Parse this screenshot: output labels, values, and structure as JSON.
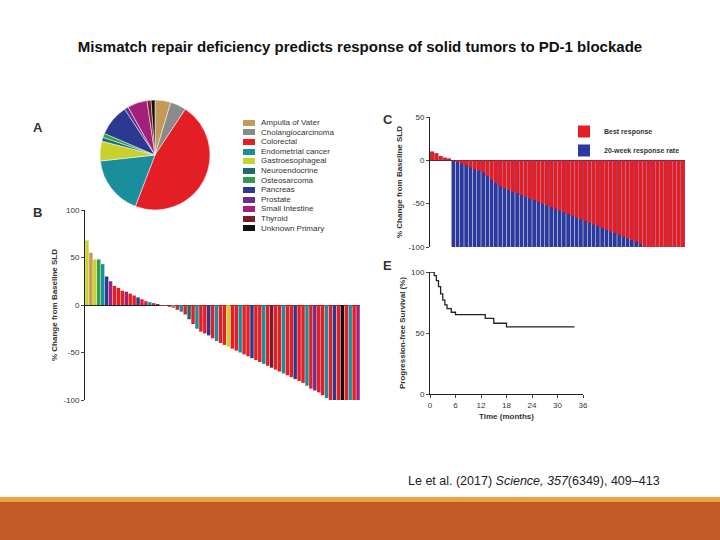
{
  "slide": {
    "title": "Mismatch repair deficiency predicts response of solid tumors to PD-1 blockade",
    "citation": {
      "authors": "Le et al. (2017) ",
      "journal": "Science, 357",
      "rest": "(6349), 409–413"
    }
  },
  "chart_data": [
    {
      "panel": "A",
      "type": "pie",
      "categories": [
        "Ampulla of Vater",
        "Cholangiocarcinoma",
        "Colorectal",
        "Endometrial cancer",
        "Gastroesophageal",
        "Neuroendocrine",
        "Osteosarcoma",
        "Pancreas",
        "Prostate",
        "Small Intestine",
        "Thyroid",
        "Unknown Primary"
      ],
      "values": [
        4,
        4,
        40,
        15,
        5,
        1,
        1,
        8,
        1,
        5,
        1,
        1
      ],
      "colors": [
        "#c49a5a",
        "#8a8a8a",
        "#e31e24",
        "#1b8e9e",
        "#c9d12c",
        "#1e6b6b",
        "#2e9e4a",
        "#2b3990",
        "#6b2c91",
        "#a3207a",
        "#7a1c2c",
        "#111111"
      ],
      "legend": "right"
    },
    {
      "panel": "B",
      "type": "bar",
      "y_label": "% Change from Baseline SLD",
      "categories": [
        null,
        null,
        null,
        null,
        null,
        null,
        null,
        null,
        null,
        null,
        null,
        null,
        null,
        null,
        null,
        null,
        null,
        null,
        null,
        null,
        null,
        null,
        null,
        null,
        null,
        null,
        null,
        null,
        null,
        null,
        null,
        null,
        null,
        null,
        null,
        null,
        null,
        null,
        null,
        null,
        null,
        null,
        null,
        null,
        null,
        null,
        null,
        null,
        null,
        null,
        null,
        null,
        null,
        null,
        null,
        null,
        null,
        null,
        null,
        null,
        null,
        null,
        null,
        null,
        null,
        null,
        null,
        null,
        null,
        null
      ],
      "values": [
        68,
        55,
        48,
        48,
        43,
        30,
        25,
        20,
        18,
        15,
        14,
        12,
        10,
        8,
        6,
        4,
        3,
        2,
        1,
        -1,
        -1,
        -2,
        -3,
        -5,
        -7,
        -10,
        -15,
        -20,
        -25,
        -28,
        -30,
        -32,
        -35,
        -38,
        -40,
        -42,
        -44,
        -46,
        -48,
        -50,
        -52,
        -54,
        -56,
        -58,
        -60,
        -62,
        -64,
        -66,
        -68,
        -70,
        -72,
        -74,
        -76,
        -78,
        -80,
        -82,
        -85,
        -88,
        -90,
        -92,
        -95,
        -98,
        -100,
        -100,
        -100,
        -100,
        -100,
        -100,
        -100,
        -100
      ],
      "colors": [
        "#c9d12c",
        "#c49a5a",
        "#c9d12c",
        "#2e9e4a",
        "#1b8e9e",
        "#2b3990",
        "#a3207a",
        "#e31e24",
        "#e31e24",
        "#e31e24",
        "#a3207a",
        "#e31e24",
        "#e31e24",
        "#2b3990",
        "#e31e24",
        "#e31e24",
        "#1b8e9e",
        "#e31e24",
        "#2b3990",
        "#e31e24",
        "#1b8e9e",
        "#e31e24",
        "#8a8a8a",
        "#e31e24",
        "#1b8e9e",
        "#e31e24",
        "#1e6b6b",
        "#e31e24",
        "#1b8e9e",
        "#e31e24",
        "#e31e24",
        "#2b3990",
        "#e31e24",
        "#1b8e9e",
        "#e31e24",
        "#e31e24",
        "#c9d12c",
        "#e31e24",
        "#e31e24",
        "#1b8e9e",
        "#e31e24",
        "#e31e24",
        "#2b3990",
        "#e31e24",
        "#e31e24",
        "#1b8e9e",
        "#e31e24",
        "#7a1c2c",
        "#e31e24",
        "#e31e24",
        "#1b8e9e",
        "#e31e24",
        "#e31e24",
        "#2b3990",
        "#e31e24",
        "#e31e24",
        "#1b8e9e",
        "#e31e24",
        "#6b2c91",
        "#e31e24",
        "#e31e24",
        "#1b8e9e",
        "#e31e24",
        "#2b3990",
        "#e31e24",
        "#111111",
        "#e31e24",
        "#1b8e9e",
        "#e31e24",
        "#a3207a"
      ],
      "ylim": [
        -100,
        100
      ],
      "yticks": [
        -100,
        -50,
        0,
        50,
        100
      ],
      "grid": false,
      "tick_labels": "y"
    },
    {
      "panel": "C",
      "type": "bar",
      "y_label": "% Change from Baseline SLD",
      "categories": [
        null,
        null,
        null,
        null,
        null,
        null,
        null,
        null,
        null,
        null,
        null,
        null,
        null,
        null,
        null,
        null,
        null,
        null,
        null,
        null,
        null,
        null,
        null,
        null,
        null,
        null,
        null,
        null,
        null,
        null,
        null,
        null,
        null,
        null,
        null,
        null,
        null,
        null,
        null,
        null,
        null,
        null,
        null,
        null,
        null,
        null,
        null,
        null,
        null,
        null,
        null,
        null,
        null,
        null,
        null,
        null,
        null,
        null,
        null,
        null
      ],
      "series": [
        {
          "name": "20-week response rate",
          "color": "#2b3a9c",
          "values": [
            10,
            8,
            5,
            3,
            2,
            -100,
            -100,
            -100,
            -100,
            -100,
            -100,
            -100,
            -100,
            -100,
            -100,
            -100,
            -100,
            -100,
            -100,
            -100,
            -100,
            -100,
            -100,
            -100,
            -100,
            -100,
            -100,
            -100,
            -100,
            -100,
            -100,
            -100,
            -100,
            -100,
            -100,
            -100,
            -100,
            -100,
            -100,
            -100,
            -100,
            -100,
            -100,
            -100,
            -100,
            -100,
            -100,
            -100,
            -100,
            -100,
            -100,
            -100,
            -100,
            -100,
            -100,
            -100,
            -100,
            -100,
            -100,
            -100
          ]
        },
        {
          "name": "Best response",
          "color": "#e31e24",
          "values": [
            10,
            8,
            5,
            3,
            2,
            -1,
            -2,
            -4,
            -6,
            -8,
            -10,
            -12,
            -14,
            -18,
            -22,
            -26,
            -30,
            -32,
            -34,
            -36,
            -38,
            -40,
            -42,
            -44,
            -46,
            -48,
            -50,
            -52,
            -54,
            -56,
            -58,
            -60,
            -62,
            -64,
            -66,
            -68,
            -70,
            -72,
            -74,
            -76,
            -78,
            -80,
            -82,
            -84,
            -86,
            -88,
            -90,
            -92,
            -94,
            -96,
            -100,
            -100,
            -100,
            -100,
            -100,
            -100,
            -100,
            -100,
            -100,
            -100
          ]
        }
      ],
      "ylim": [
        -100,
        50
      ],
      "yticks": [
        -100,
        -50,
        0,
        50
      ],
      "grid": false,
      "tick_labels": "y",
      "legend": "top right"
    },
    {
      "panel": "E",
      "type": "step",
      "x_label": "Time (months)",
      "y_label": "Progression-free Survival (%)",
      "x": [
        0,
        1,
        1.5,
        2,
        2.5,
        3,
        3.5,
        4,
        5,
        6,
        8,
        10,
        13,
        15,
        18,
        34
      ],
      "values": [
        100,
        97,
        93,
        88,
        82,
        77,
        73,
        70,
        67,
        65,
        65,
        65,
        62,
        58,
        55,
        55
      ],
      "color": "#222222",
      "xlim": [
        0,
        36
      ],
      "xticks": [
        0,
        6,
        12,
        18,
        24,
        30,
        36
      ],
      "ylim": [
        0,
        100
      ],
      "yticks": [
        0,
        50,
        100
      ],
      "grid": false
    }
  ]
}
